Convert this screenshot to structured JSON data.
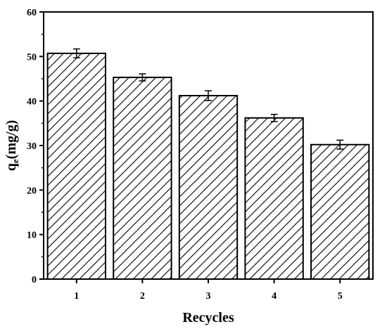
{
  "chart_data": {
    "type": "bar",
    "title": "",
    "xlabel": "Recycles",
    "ylabel_main": "q",
    "ylabel_sub": "e",
    "ylabel_unit": "(mg/g)",
    "categories": [
      "1",
      "2",
      "3",
      "4",
      "5"
    ],
    "values": [
      50.7,
      45.3,
      41.2,
      36.2,
      30.2
    ],
    "errors": [
      1.0,
      0.8,
      1.1,
      0.8,
      1.0
    ],
    "ylim": [
      0,
      60
    ],
    "yticks": [
      0,
      10,
      20,
      30,
      40,
      50,
      60
    ],
    "ytick_labels": [
      "0",
      "10",
      "20",
      "30",
      "40",
      "50",
      "60"
    ],
    "bar_pattern": "diagonal-hatch",
    "bar_fill": "#ffffff",
    "bar_edge": "#000000",
    "grid": false,
    "legend": "none"
  }
}
